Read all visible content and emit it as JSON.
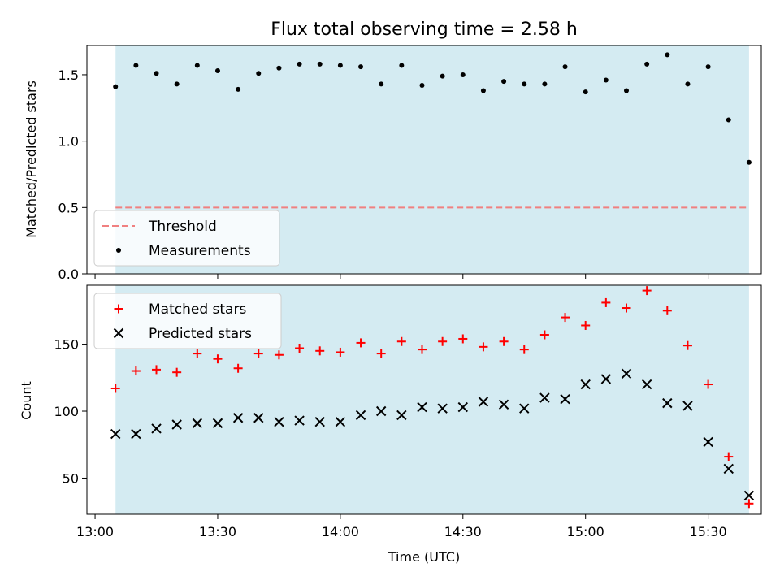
{
  "chart_data": [
    {
      "type": "scatter",
      "title": "Flux total observing time = 2.58 h",
      "xlabel": "",
      "ylabel": "Matched/Predicted stars",
      "xlim": [
        "12:58",
        "15:43"
      ],
      "ylim": [
        0,
        1.72
      ],
      "yticks": [
        0.0,
        0.5,
        1.0,
        1.5
      ],
      "ytick_labels": [
        "0.0",
        "0.5",
        "1.0",
        "1.5"
      ],
      "shaded_span": [
        "13:05",
        "15:40"
      ],
      "shaded_color": "#add8e6",
      "legend_position": "lower-left",
      "threshold": {
        "name": "Threshold",
        "value": 0.5,
        "color": "#f08080",
        "style": "dashed"
      },
      "series": [
        {
          "name": "Measurements",
          "marker": "dot",
          "color": "#000000",
          "x": [
            "13:05",
            "13:10",
            "13:15",
            "13:20",
            "13:25",
            "13:30",
            "13:35",
            "13:40",
            "13:45",
            "13:50",
            "13:55",
            "14:00",
            "14:05",
            "14:10",
            "14:15",
            "14:20",
            "14:25",
            "14:30",
            "14:35",
            "14:40",
            "14:45",
            "14:50",
            "14:55",
            "15:00",
            "15:05",
            "15:10",
            "15:15",
            "15:20",
            "15:25",
            "15:30",
            "15:35",
            "15:40"
          ],
          "y": [
            1.41,
            1.57,
            1.51,
            1.43,
            1.57,
            1.53,
            1.39,
            1.51,
            1.55,
            1.58,
            1.58,
            1.57,
            1.56,
            1.43,
            1.57,
            1.42,
            1.49,
            1.5,
            1.38,
            1.45,
            1.43,
            1.43,
            1.56,
            1.37,
            1.46,
            1.38,
            1.58,
            1.65,
            1.43,
            1.56,
            1.16,
            0.84
          ]
        }
      ]
    },
    {
      "type": "scatter",
      "title": "",
      "xlabel": "Time (UTC)",
      "ylabel": "Count",
      "xlim": [
        "12:58",
        "15:43"
      ],
      "ylim": [
        23,
        194
      ],
      "yticks": [
        50,
        100,
        150
      ],
      "ytick_labels": [
        "50",
        "100",
        "150"
      ],
      "xticks": [
        "13:00",
        "13:30",
        "14:00",
        "14:30",
        "15:00",
        "15:30"
      ],
      "xtick_labels": [
        "13:00",
        "13:30",
        "14:00",
        "14:30",
        "15:00",
        "15:30"
      ],
      "shaded_span": [
        "13:05",
        "15:40"
      ],
      "shaded_color": "#add8e6",
      "legend_position": "upper-left",
      "series": [
        {
          "name": "Matched stars",
          "marker": "plus",
          "color": "#ff0000",
          "x": [
            "13:05",
            "13:10",
            "13:15",
            "13:20",
            "13:25",
            "13:30",
            "13:35",
            "13:40",
            "13:45",
            "13:50",
            "13:55",
            "14:00",
            "14:05",
            "14:10",
            "14:15",
            "14:20",
            "14:25",
            "14:30",
            "14:35",
            "14:40",
            "14:45",
            "14:50",
            "14:55",
            "15:00",
            "15:05",
            "15:10",
            "15:15",
            "15:20",
            "15:25",
            "15:30",
            "15:35",
            "15:40"
          ],
          "y": [
            117,
            130,
            131,
            129,
            143,
            139,
            132,
            143,
            142,
            147,
            145,
            144,
            151,
            143,
            152,
            146,
            152,
            154,
            148,
            152,
            146,
            157,
            170,
            164,
            181,
            177,
            190,
            175,
            149,
            120,
            66,
            31
          ]
        },
        {
          "name": "Predicted stars",
          "marker": "x",
          "color": "#000000",
          "x": [
            "13:05",
            "13:10",
            "13:15",
            "13:20",
            "13:25",
            "13:30",
            "13:35",
            "13:40",
            "13:45",
            "13:50",
            "13:55",
            "14:00",
            "14:05",
            "14:10",
            "14:15",
            "14:20",
            "14:25",
            "14:30",
            "14:35",
            "14:40",
            "14:45",
            "14:50",
            "14:55",
            "15:00",
            "15:05",
            "15:10",
            "15:15",
            "15:20",
            "15:25",
            "15:30",
            "15:35",
            "15:40"
          ],
          "y": [
            83,
            83,
            87,
            90,
            91,
            91,
            95,
            95,
            92,
            93,
            92,
            92,
            97,
            100,
            97,
            103,
            102,
            103,
            107,
            105,
            102,
            110,
            109,
            120,
            124,
            128,
            120,
            106,
            104,
            77,
            57,
            37
          ]
        }
      ]
    }
  ]
}
